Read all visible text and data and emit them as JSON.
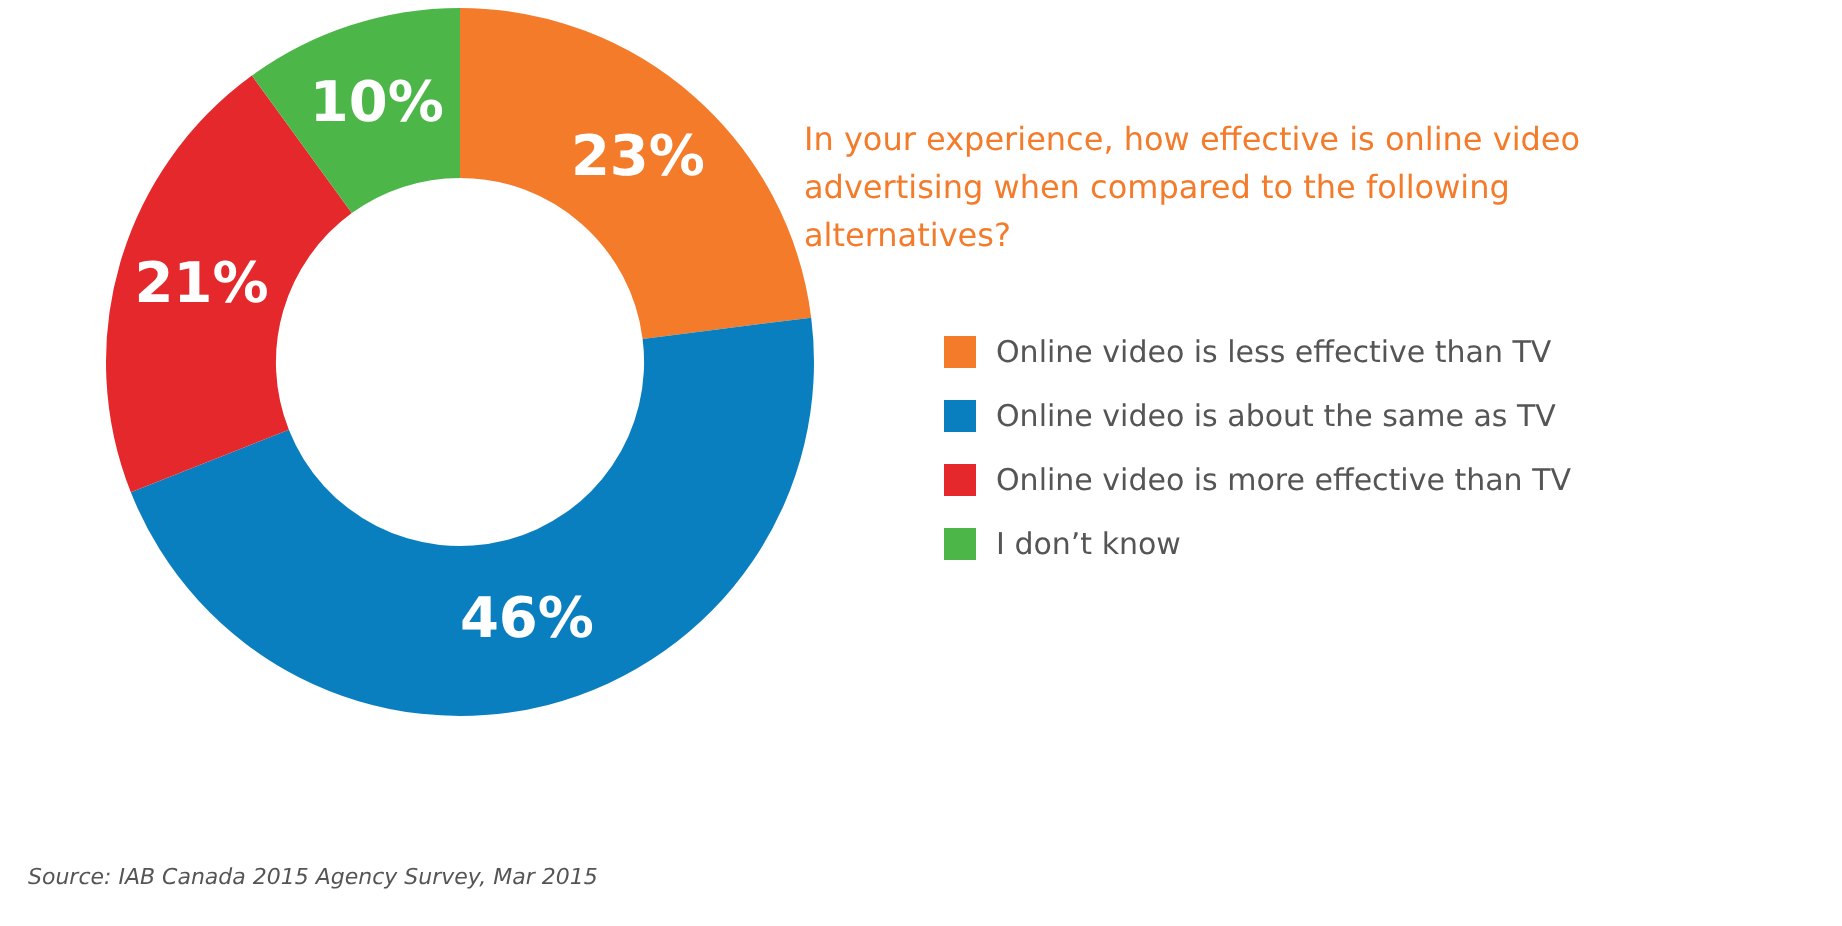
{
  "chart_data": {
    "type": "donut",
    "title": "In your experience, how effective is online video advertising when compared to the following alternatives?",
    "categories": [
      "Online video is less effective than TV",
      "Online video is about the same as TV",
      "Online video is more effective than TV",
      "I don’t know"
    ],
    "values": [
      23,
      46,
      21,
      10
    ],
    "colors": [
      "#f47b2a",
      "#0a7fbf",
      "#e5282c",
      "#4cb748"
    ],
    "value_labels": [
      "23%",
      "46%",
      "21%",
      "10%"
    ],
    "legend": "right",
    "annotations": [
      "Source: IAB Canada 2015 Agency Survey, Mar 2015"
    ]
  }
}
